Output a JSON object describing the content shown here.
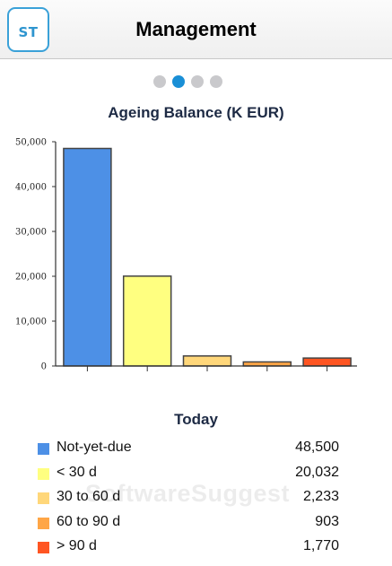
{
  "header": {
    "logo_text": "ST",
    "title": "Management"
  },
  "pager": {
    "count": 4,
    "active_index": 1
  },
  "colors": {
    "accent": "#1a8fd6",
    "logo_border": "#3aa1d8",
    "dot_inactive": "#c9c9cc"
  },
  "chart_data": {
    "type": "bar",
    "title": "Ageing Balance (K EUR)",
    "categories": [
      "Not-yet-due",
      "< 30 d",
      "30 to 60 d",
      "60 to 90 d",
      "> 90 d"
    ],
    "values": [
      48500,
      20032,
      2233,
      903,
      1770
    ],
    "colors": [
      "#4d90e6",
      "#ffff80",
      "#ffd77a",
      "#ffa646",
      "#ff5522"
    ],
    "ylim": [
      0,
      50000
    ],
    "yticks": [
      "0",
      "10,000",
      "20,000",
      "30,000",
      "40,000",
      "50,000"
    ],
    "xlabel": "",
    "ylabel": "",
    "grid": false,
    "legend": "bottom"
  },
  "summary": {
    "title": "Today",
    "rows": [
      {
        "label": "Not-yet-due",
        "value": "48,500",
        "color": "#4d90e6"
      },
      {
        "label": "< 30 d",
        "value": "20,032",
        "color": "#ffff80"
      },
      {
        "label": "30 to 60 d",
        "value": "2,233",
        "color": "#ffd77a"
      },
      {
        "label": "60 to 90 d",
        "value": "903",
        "color": "#ffa646"
      },
      {
        "label": "> 90 d",
        "value": "1,770",
        "color": "#ff5522"
      }
    ]
  },
  "watermark": "SoftwareSuggest"
}
